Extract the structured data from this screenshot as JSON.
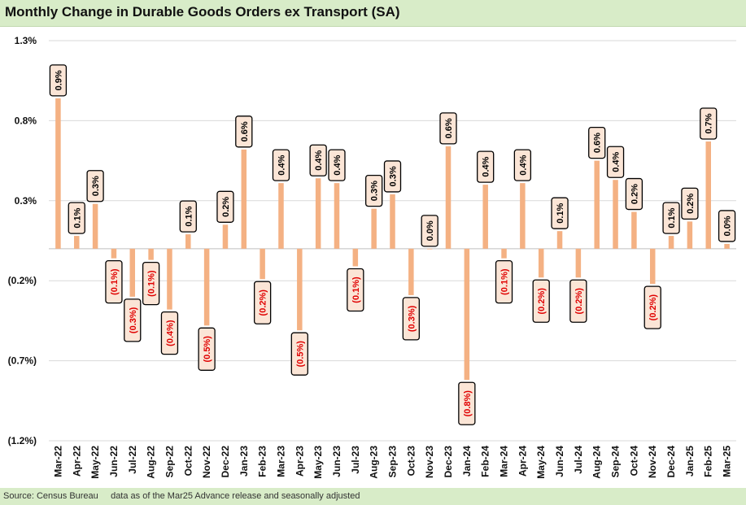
{
  "title": "Monthly Change in Durable Goods Orders ex Transport (SA)",
  "source": "Source: Census Bureau     data as of the Mar25 Advance release and seasonally adjusted",
  "colors": {
    "bar": "#f4b183",
    "label_bg": "#fbe5d6",
    "negative_text": "#e00000",
    "positive_text": "#000000",
    "title_bg": "#d8ecc8"
  },
  "chart_data": {
    "type": "bar",
    "ylim": [
      -1.2,
      1.3
    ],
    "yticks": [
      1.3,
      0.8,
      0.3,
      -0.2,
      -0.7,
      -1.2
    ],
    "ytick_labels": [
      "1.3%",
      "0.8%",
      "0.3%",
      "(0.2%)",
      "(0.7%)",
      "(1.2%)"
    ],
    "grid": "horizontal",
    "categories": [
      "Mar-22",
      "Apr-22",
      "May-22",
      "Jun-22",
      "Jul-22",
      "Aug-22",
      "Sep-22",
      "Oct-22",
      "Nov-22",
      "Dec-22",
      "Jan-23",
      "Feb-23",
      "Mar-23",
      "Apr-23",
      "May-23",
      "Jun-23",
      "Jul-23",
      "Aug-23",
      "Sep-23",
      "Oct-23",
      "Nov-23",
      "Dec-23",
      "Jan-24",
      "Feb-24",
      "Mar-24",
      "Apr-24",
      "May-24",
      "Jun-24",
      "Jul-24",
      "Aug-24",
      "Sep-24",
      "Oct-24",
      "Nov-24",
      "Dec-24",
      "Jan-25",
      "Feb-25",
      "Mar-25"
    ],
    "values": [
      0.94,
      0.08,
      0.28,
      -0.06,
      -0.3,
      -0.07,
      -0.38,
      0.09,
      -0.48,
      0.15,
      0.62,
      -0.19,
      0.41,
      -0.51,
      0.44,
      0.41,
      -0.11,
      0.25,
      0.34,
      -0.29,
      0.0,
      0.64,
      -0.82,
      0.4,
      -0.06,
      0.41,
      -0.18,
      0.11,
      -0.18,
      0.55,
      0.43,
      0.23,
      -0.22,
      0.08,
      0.17,
      0.67,
      0.03
    ],
    "data_labels": [
      "0.9%",
      "0.1%",
      "0.3%",
      "(0.1%)",
      "(0.3%)",
      "(0.1%)",
      "(0.4%)",
      "0.1%",
      "(0.5%)",
      "0.2%",
      "0.6%",
      "(0.2%)",
      "0.4%",
      "(0.5%)",
      "0.4%",
      "0.4%",
      "(0.1%)",
      "0.3%",
      "0.3%",
      "(0.3%)",
      "0.0%",
      "0.6%",
      "(0.8%)",
      "0.4%",
      "(0.1%)",
      "0.4%",
      "(0.2%)",
      "0.1%",
      "(0.2%)",
      "0.6%",
      "0.4%",
      "0.2%",
      "(0.2%)",
      "0.1%",
      "0.2%",
      "0.7%",
      "0.0%"
    ]
  }
}
